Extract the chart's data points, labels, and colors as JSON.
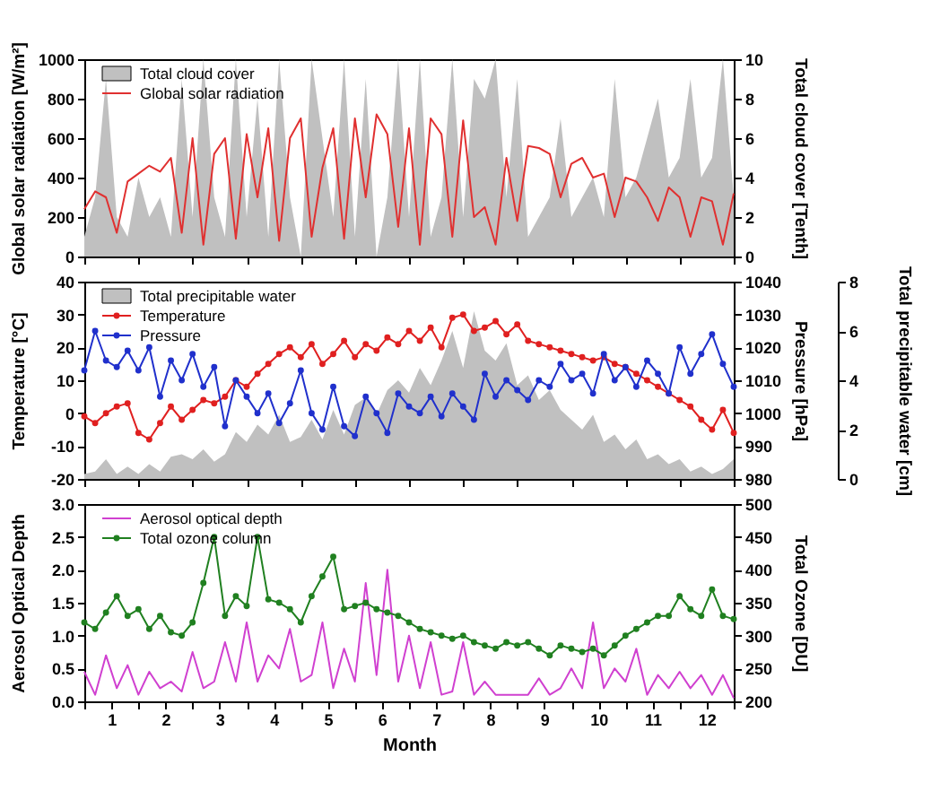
{
  "chart_data": [
    {
      "type": "line",
      "legend": "top left",
      "tick_labels": "y",
      "ylabel": "Global solar radiation [W/m²]",
      "y2label": "Total cloud cover [Tenth]",
      "x": [
        0.5,
        0.7,
        0.9,
        1.1,
        1.3,
        1.5,
        1.7,
        1.9,
        2.1,
        2.3,
        2.5,
        2.7,
        2.9,
        3.1,
        3.3,
        3.5,
        3.7,
        3.9,
        4.1,
        4.3,
        4.5,
        4.7,
        4.9,
        5.1,
        5.3,
        5.5,
        5.7,
        5.9,
        6.1,
        6.3,
        6.5,
        6.7,
        6.9,
        7.1,
        7.3,
        7.5,
        7.7,
        7.9,
        8.1,
        8.3,
        8.5,
        8.7,
        8.9,
        9.1,
        9.3,
        9.5,
        9.7,
        9.9,
        10.1,
        10.3,
        10.5,
        10.7,
        10.9,
        11.1,
        11.3,
        11.5,
        11.7,
        11.9,
        12.1,
        12.3,
        12.5
      ],
      "xlim": [
        0.5,
        12.5
      ],
      "xticks": [
        {
          "value": 0.5,
          "label": null
        },
        {
          "value": 1.5,
          "label": null
        },
        {
          "value": 2.5,
          "label": null
        },
        {
          "value": 3.5,
          "label": null
        },
        {
          "value": 4.5,
          "label": null
        },
        {
          "value": 5.5,
          "label": null
        },
        {
          "value": 6.5,
          "label": null
        },
        {
          "value": 7.5,
          "label": null
        },
        {
          "value": 8.5,
          "label": null
        },
        {
          "value": 9.5,
          "label": null
        },
        {
          "value": 10.5,
          "label": null
        },
        {
          "value": 11.5,
          "label": null
        },
        {
          "value": 12.5,
          "label": null
        }
      ],
      "ylim": [
        0,
        1000
      ],
      "yticks": [
        0,
        200,
        400,
        600,
        800,
        1000
      ],
      "y2lim": [
        0,
        10
      ],
      "y2ticks": [
        0,
        2,
        4,
        6,
        8,
        10
      ],
      "series": [
        {
          "name": "Total cloud cover",
          "type": "area",
          "axis": "y2",
          "color": "#c0c0c0",
          "values": [
            1,
            3,
            9,
            2,
            1,
            4,
            2,
            3,
            1,
            9,
            2,
            10,
            3,
            1,
            10,
            2,
            8,
            1,
            10,
            3,
            0,
            10,
            6,
            2,
            10,
            1,
            9,
            0,
            3,
            10,
            2,
            10,
            1,
            3,
            10,
            2,
            9,
            8,
            10,
            3,
            9,
            1,
            2,
            3,
            7,
            2,
            3,
            4,
            2,
            9,
            3,
            4,
            6,
            8,
            4,
            5,
            9,
            4,
            5,
            10,
            3
          ]
        },
        {
          "name": "Global solar radiation",
          "marker": "none",
          "color": "#e03030",
          "values": [
            240,
            330,
            300,
            120,
            380,
            420,
            460,
            430,
            500,
            120,
            600,
            60,
            520,
            600,
            90,
            620,
            300,
            650,
            80,
            600,
            700,
            100,
            450,
            650,
            90,
            700,
            300,
            720,
            620,
            150,
            650,
            60,
            700,
            620,
            100,
            690,
            200,
            250,
            60,
            500,
            180,
            560,
            550,
            520,
            300,
            470,
            500,
            400,
            420,
            200,
            400,
            380,
            300,
            180,
            350,
            300,
            100,
            300,
            280,
            60,
            320
          ]
        }
      ]
    },
    {
      "type": "line",
      "legend": "top left",
      "tick_labels": "y",
      "ylabel": "Temperature [°C]",
      "y2label": "Pressure [hPa]",
      "y3label": "Total precipitable water [cm]",
      "x": [
        0.5,
        0.7,
        0.9,
        1.1,
        1.3,
        1.5,
        1.7,
        1.9,
        2.1,
        2.3,
        2.5,
        2.7,
        2.9,
        3.1,
        3.3,
        3.5,
        3.7,
        3.9,
        4.1,
        4.3,
        4.5,
        4.7,
        4.9,
        5.1,
        5.3,
        5.5,
        5.7,
        5.9,
        6.1,
        6.3,
        6.5,
        6.7,
        6.9,
        7.1,
        7.3,
        7.5,
        7.7,
        7.9,
        8.1,
        8.3,
        8.5,
        8.7,
        8.9,
        9.1,
        9.3,
        9.5,
        9.7,
        9.9,
        10.1,
        10.3,
        10.5,
        10.7,
        10.9,
        11.1,
        11.3,
        11.5,
        11.7,
        11.9,
        12.1,
        12.3,
        12.5
      ],
      "xlim": [
        0.5,
        12.5
      ],
      "xticks": [
        {
          "value": 0.5,
          "label": null
        },
        {
          "value": 1.5,
          "label": null
        },
        {
          "value": 2.5,
          "label": null
        },
        {
          "value": 3.5,
          "label": null
        },
        {
          "value": 4.5,
          "label": null
        },
        {
          "value": 5.5,
          "label": null
        },
        {
          "value": 6.5,
          "label": null
        },
        {
          "value": 7.5,
          "label": null
        },
        {
          "value": 8.5,
          "label": null
        },
        {
          "value": 9.5,
          "label": null
        },
        {
          "value": 10.5,
          "label": null
        },
        {
          "value": 11.5,
          "label": null
        },
        {
          "value": 12.5,
          "label": null
        }
      ],
      "ylim": [
        -20,
        40
      ],
      "yticks": [
        -20,
        -10,
        0,
        10,
        20,
        30,
        40
      ],
      "y2lim": [
        980,
        1040
      ],
      "y2ticks": [
        980,
        990,
        1000,
        1010,
        1020,
        1030,
        1040
      ],
      "y3lim": [
        0,
        8
      ],
      "y3ticks": [
        0,
        2,
        4,
        6,
        8
      ],
      "series": [
        {
          "name": "Total precipitable water",
          "type": "area",
          "axis": "y3",
          "color": "#c0c0c0",
          "values": [
            0.2,
            0.3,
            0.8,
            0.2,
            0.5,
            0.2,
            0.6,
            0.3,
            0.9,
            1.0,
            0.8,
            1.2,
            0.7,
            1.0,
            1.9,
            1.5,
            2.2,
            1.8,
            2.6,
            1.5,
            1.7,
            2.4,
            1.6,
            2.8,
            1.8,
            3.0,
            3.3,
            2.6,
            3.6,
            4.0,
            3.5,
            4.5,
            3.8,
            4.8,
            6.0,
            4.5,
            6.8,
            5.2,
            4.8,
            5.5,
            3.8,
            4.2,
            3.2,
            3.6,
            2.8,
            2.4,
            2.0,
            2.6,
            1.5,
            1.8,
            1.2,
            1.6,
            0.8,
            1.0,
            0.6,
            0.8,
            0.3,
            0.5,
            0.2,
            0.4,
            0.8
          ]
        },
        {
          "name": "Temperature",
          "marker": "circle",
          "color": "#e02020",
          "values": [
            -1,
            -3,
            0,
            2,
            3,
            -6,
            -8,
            -3,
            2,
            -2,
            1,
            4,
            3,
            5,
            10,
            8,
            12,
            15,
            18,
            20,
            17,
            21,
            15,
            18,
            22,
            17,
            21,
            19,
            23,
            21,
            25,
            22,
            26,
            20,
            29,
            30,
            25,
            26,
            28,
            24,
            27,
            22,
            21,
            20,
            19,
            18,
            17,
            16,
            17,
            15,
            14,
            12,
            10,
            8,
            6,
            4,
            2,
            -2,
            -5,
            1,
            -6
          ]
        },
        {
          "name": "Pressure",
          "marker": "circle",
          "axis": "y2",
          "color": "#2030cc",
          "values": [
            1013,
            1025,
            1016,
            1014,
            1019,
            1013,
            1020,
            1005,
            1016,
            1010,
            1018,
            1008,
            1014,
            996,
            1010,
            1005,
            1000,
            1006,
            997,
            1003,
            1013,
            1000,
            995,
            1008,
            996,
            993,
            1005,
            1000,
            994,
            1006,
            1002,
            1000,
            1005,
            999,
            1006,
            1002,
            998,
            1012,
            1005,
            1010,
            1007,
            1004,
            1010,
            1008,
            1015,
            1010,
            1012,
            1006,
            1018,
            1010,
            1014,
            1008,
            1016,
            1012,
            1006,
            1020,
            1012,
            1018,
            1024,
            1015,
            1008
          ]
        }
      ]
    },
    {
      "type": "line",
      "legend": "top left",
      "xlabel": "Month",
      "ylabel": "Aerosol Optical Depth",
      "y2label": "Total Ozone [DU]",
      "x": [
        0.5,
        0.7,
        0.9,
        1.1,
        1.3,
        1.5,
        1.7,
        1.9,
        2.1,
        2.3,
        2.5,
        2.7,
        2.9,
        3.1,
        3.3,
        3.5,
        3.7,
        3.9,
        4.1,
        4.3,
        4.5,
        4.7,
        4.9,
        5.1,
        5.3,
        5.5,
        5.7,
        5.9,
        6.1,
        6.3,
        6.5,
        6.7,
        6.9,
        7.1,
        7.3,
        7.5,
        7.7,
        7.9,
        8.1,
        8.3,
        8.5,
        8.7,
        8.9,
        9.1,
        9.3,
        9.5,
        9.7,
        9.9,
        10.1,
        10.3,
        10.5,
        10.7,
        10.9,
        11.1,
        11.3,
        11.5,
        11.7,
        11.9,
        12.1,
        12.3,
        12.5
      ],
      "xlim": [
        0.5,
        12.5
      ],
      "xticks": [
        {
          "value": 0.5,
          "label": null
        },
        1,
        {
          "value": 1.5,
          "label": null
        },
        2,
        {
          "value": 2.5,
          "label": null
        },
        3,
        {
          "value": 3.5,
          "label": null
        },
        4,
        {
          "value": 4.5,
          "label": null
        },
        5,
        {
          "value": 5.5,
          "label": null
        },
        6,
        {
          "value": 6.5,
          "label": null
        },
        7,
        {
          "value": 7.5,
          "label": null
        },
        8,
        {
          "value": 8.5,
          "label": null
        },
        9,
        {
          "value": 9.5,
          "label": null
        },
        10,
        {
          "value": 10.5,
          "label": null
        },
        11,
        {
          "value": 11.5,
          "label": null
        },
        12,
        {
          "value": 12.5,
          "label": null
        }
      ],
      "ylim": [
        0,
        3
      ],
      "yticks": [
        {
          "value": 0,
          "label": "0.0"
        },
        {
          "value": 0.5,
          "label": "0.5"
        },
        {
          "value": 1,
          "label": "1.0"
        },
        {
          "value": 1.5,
          "label": "1.5"
        },
        {
          "value": 2,
          "label": "2.0"
        },
        {
          "value": 2.5,
          "label": "2.5"
        },
        {
          "value": 3,
          "label": "3.0"
        }
      ],
      "y2lim": [
        200,
        500
      ],
      "y2ticks": [
        200,
        250,
        300,
        350,
        400,
        450,
        500
      ],
      "series": [
        {
          "name": "Aerosol optical depth",
          "marker": "none",
          "color": "#d040d0",
          "values": [
            0.45,
            0.1,
            0.7,
            0.2,
            0.55,
            0.1,
            0.45,
            0.2,
            0.3,
            0.15,
            0.75,
            0.2,
            0.3,
            0.9,
            0.3,
            1.2,
            0.3,
            0.7,
            0.5,
            1.1,
            0.3,
            0.4,
            1.2,
            0.2,
            0.8,
            0.3,
            1.8,
            0.4,
            2.0,
            0.3,
            1.0,
            0.2,
            0.9,
            0.1,
            0.15,
            0.9,
            0.1,
            0.3,
            0.1,
            0.1,
            0.1,
            0.1,
            0.35,
            0.1,
            0.2,
            0.5,
            0.2,
            1.2,
            0.2,
            0.5,
            0.3,
            0.8,
            0.1,
            0.4,
            0.2,
            0.45,
            0.2,
            0.4,
            0.1,
            0.4,
            0.05
          ]
        },
        {
          "name": "Total ozone column",
          "marker": "circle",
          "axis": "y2",
          "color": "#208020",
          "values": [
            320,
            310,
            335,
            360,
            330,
            340,
            310,
            330,
            305,
            300,
            320,
            380,
            450,
            330,
            360,
            345,
            450,
            355,
            350,
            340,
            320,
            360,
            390,
            420,
            340,
            345,
            350,
            340,
            335,
            330,
            320,
            310,
            305,
            300,
            295,
            300,
            290,
            285,
            280,
            290,
            285,
            290,
            280,
            270,
            285,
            280,
            275,
            280,
            270,
            285,
            300,
            310,
            320,
            330,
            330,
            360,
            340,
            330,
            370,
            330,
            325
          ]
        }
      ]
    }
  ]
}
